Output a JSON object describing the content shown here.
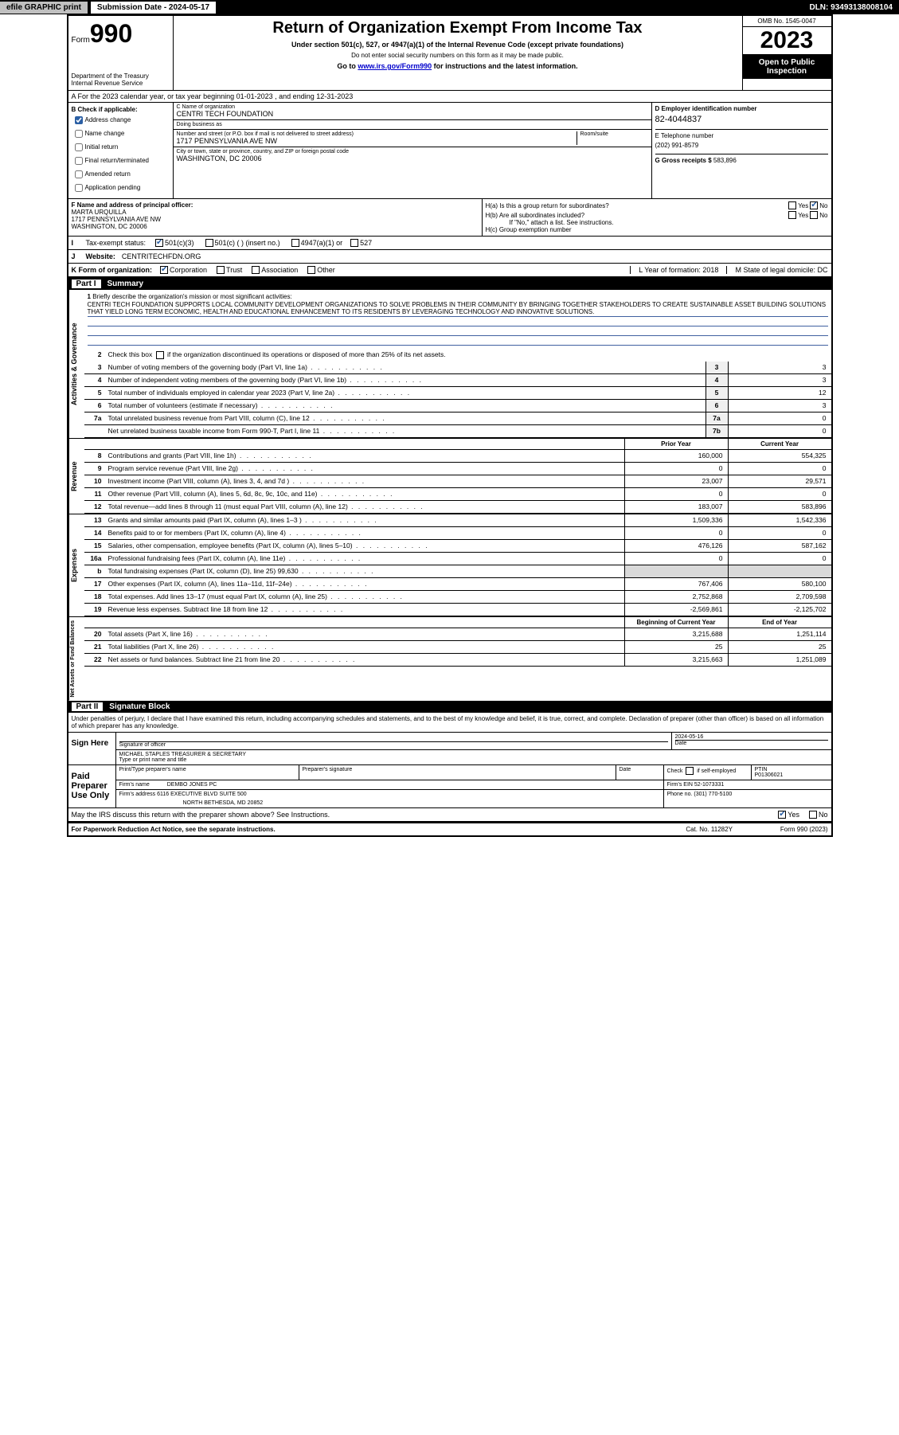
{
  "topbar": {
    "efile": "efile GRAPHIC print",
    "submission": "Submission Date - 2024-05-17",
    "dln": "DLN: 93493138008104"
  },
  "header": {
    "form_prefix": "Form",
    "form_num": "990",
    "dept": "Department of the Treasury",
    "irs": "Internal Revenue Service",
    "title": "Return of Organization Exempt From Income Tax",
    "sub1": "Under section 501(c), 527, or 4947(a)(1) of the Internal Revenue Code (except private foundations)",
    "sub2": "Do not enter social security numbers on this form as it may be made public.",
    "sub3_a": "Go to ",
    "sub3_link": "www.irs.gov/Form990",
    "sub3_b": " for instructions and the latest information.",
    "omb": "OMB No. 1545-0047",
    "year": "2023",
    "open": "Open to Public Inspection"
  },
  "row_a": "A  For the 2023 calendar year, or tax year beginning 01-01-2023   , and ending 12-31-2023",
  "section_b": {
    "b_label": "B Check if applicable:",
    "checks": [
      {
        "label": "Address change",
        "checked": true
      },
      {
        "label": "Name change",
        "checked": false
      },
      {
        "label": "Initial return",
        "checked": false
      },
      {
        "label": "Final return/terminated",
        "checked": false
      },
      {
        "label": "Amended return",
        "checked": false
      },
      {
        "label": "Application pending",
        "checked": false
      }
    ],
    "c_name_lbl": "C Name of organization",
    "c_name": "CENTRI TECH FOUNDATION",
    "dba_lbl": "Doing business as",
    "dba": "",
    "addr_lbl": "Number and street (or P.O. box if mail is not delivered to street address)",
    "room_lbl": "Room/suite",
    "addr": "1717 PENNSYLVANIA AVE NW",
    "city_lbl": "City or town, state or province, country, and ZIP or foreign postal code",
    "city": "WASHINGTON, DC  20006",
    "d_lbl": "D Employer identification number",
    "d_val": "82-4044837",
    "e_lbl": "E Telephone number",
    "e_val": "(202) 991-8579",
    "g_lbl": "G Gross receipts $",
    "g_val": "583,896"
  },
  "section_f": {
    "f_lbl": "F Name and address of principal officer:",
    "f_name": "MARTA URQUILLA",
    "f_addr1": "1717 PENNSYLVANIA AVE NW",
    "f_addr2": "WASHINGTON, DC  20006",
    "ha": "H(a)  Is this a group return for subordinates?",
    "hb": "H(b)  Are all subordinates included?",
    "hb_note": "If \"No,\" attach a list. See instructions.",
    "hc": "H(c)  Group exemption number ",
    "yes": "Yes",
    "no": "No"
  },
  "line_i": {
    "label": "Tax-exempt status:",
    "opts": [
      "501(c)(3)",
      "501(c) (  ) (insert no.)",
      "4947(a)(1) or",
      "527"
    ]
  },
  "line_j": {
    "label": "Website: ",
    "val": "CENTRITECHFDN.ORG"
  },
  "line_k": {
    "label": "K Form of organization:",
    "opts": [
      "Corporation",
      "Trust",
      "Association",
      "Other"
    ],
    "l": "L Year of formation: 2018",
    "m": "M State of legal domicile: DC"
  },
  "part1": {
    "num": "Part I",
    "title": "Summary",
    "side_ag": "Activities & Governance",
    "side_rev": "Revenue",
    "side_exp": "Expenses",
    "side_net": "Net Assets or Fund Balances",
    "l1": "Briefly describe the organization's mission or most significant activities:",
    "mission": "CENTRI TECH FOUNDATION SUPPORTS LOCAL COMMUNITY DEVELOPMENT ORGANIZATIONS TO SOLVE PROBLEMS IN THEIR COMMUNITY BY BRINGING TOGETHER STAKEHOLDERS TO CREATE SUSTAINABLE ASSET BUILDING SOLUTIONS THAT YIELD LONG TERM ECONOMIC, HEALTH AND EDUCATIONAL ENHANCEMENT TO ITS RESIDENTS BY LEVERAGING TECHNOLOGY AND INNOVATIVE SOLUTIONS.",
    "l2": "Check this box       if the organization discontinued its operations or disposed of more than 25% of its net assets.",
    "lines_ag": [
      {
        "n": "3",
        "t": "Number of voting members of the governing body (Part VI, line 1a)",
        "box": "3",
        "v": "3"
      },
      {
        "n": "4",
        "t": "Number of independent voting members of the governing body (Part VI, line 1b)",
        "box": "4",
        "v": "3"
      },
      {
        "n": "5",
        "t": "Total number of individuals employed in calendar year 2023 (Part V, line 2a)",
        "box": "5",
        "v": "12"
      },
      {
        "n": "6",
        "t": "Total number of volunteers (estimate if necessary)",
        "box": "6",
        "v": "3"
      },
      {
        "n": "7a",
        "t": "Total unrelated business revenue from Part VIII, column (C), line 12",
        "box": "7a",
        "v": "0"
      },
      {
        "n": "",
        "t": "Net unrelated business taxable income from Form 990-T, Part I, line 11",
        "box": "7b",
        "v": "0"
      }
    ],
    "col_prior": "Prior Year",
    "col_curr": "Current Year",
    "col_beg": "Beginning of Current Year",
    "col_end": "End of Year",
    "lines_rev": [
      {
        "n": "8",
        "t": "Contributions and grants (Part VIII, line 1h)",
        "p": "160,000",
        "c": "554,325"
      },
      {
        "n": "9",
        "t": "Program service revenue (Part VIII, line 2g)",
        "p": "0",
        "c": "0"
      },
      {
        "n": "10",
        "t": "Investment income (Part VIII, column (A), lines 3, 4, and 7d )",
        "p": "23,007",
        "c": "29,571"
      },
      {
        "n": "11",
        "t": "Other revenue (Part VIII, column (A), lines 5, 6d, 8c, 9c, 10c, and 11e)",
        "p": "0",
        "c": "0"
      },
      {
        "n": "12",
        "t": "Total revenue—add lines 8 through 11 (must equal Part VIII, column (A), line 12)",
        "p": "183,007",
        "c": "583,896"
      }
    ],
    "lines_exp": [
      {
        "n": "13",
        "t": "Grants and similar amounts paid (Part IX, column (A), lines 1–3 )",
        "p": "1,509,336",
        "c": "1,542,336"
      },
      {
        "n": "14",
        "t": "Benefits paid to or for members (Part IX, column (A), line 4)",
        "p": "0",
        "c": "0"
      },
      {
        "n": "15",
        "t": "Salaries, other compensation, employee benefits (Part IX, column (A), lines 5–10)",
        "p": "476,126",
        "c": "587,162"
      },
      {
        "n": "16a",
        "t": "Professional fundraising fees (Part IX, column (A), line 11e)",
        "p": "0",
        "c": "0"
      },
      {
        "n": "b",
        "t": "Total fundraising expenses (Part IX, column (D), line 25) 99,630",
        "p": "",
        "c": "",
        "shade": true
      },
      {
        "n": "17",
        "t": "Other expenses (Part IX, column (A), lines 11a–11d, 11f–24e)",
        "p": "767,406",
        "c": "580,100"
      },
      {
        "n": "18",
        "t": "Total expenses. Add lines 13–17 (must equal Part IX, column (A), line 25)",
        "p": "2,752,868",
        "c": "2,709,598"
      },
      {
        "n": "19",
        "t": "Revenue less expenses. Subtract line 18 from line 12",
        "p": "-2,569,861",
        "c": "-2,125,702"
      }
    ],
    "lines_net": [
      {
        "n": "20",
        "t": "Total assets (Part X, line 16)",
        "p": "3,215,688",
        "c": "1,251,114"
      },
      {
        "n": "21",
        "t": "Total liabilities (Part X, line 26)",
        "p": "25",
        "c": "25"
      },
      {
        "n": "22",
        "t": "Net assets or fund balances. Subtract line 21 from line 20",
        "p": "3,215,663",
        "c": "1,251,089"
      }
    ]
  },
  "part2": {
    "num": "Part II",
    "title": "Signature Block",
    "perjury": "Under penalties of perjury, I declare that I have examined this return, including accompanying schedules and statements, and to the best of my knowledge and belief, it is true, correct, and complete. Declaration of preparer (other than officer) is based on all information of which preparer has any knowledge."
  },
  "sign": {
    "here": "Sign Here",
    "sig_lbl": "Signature of officer",
    "date_lbl": "Date",
    "date": "2024-05-16",
    "officer": "MICHAEL STAPLES  TREASURER & SECRETARY",
    "type_lbl": "Type or print name and title"
  },
  "paid": {
    "title": "Paid Preparer Use Only",
    "name_lbl": "Print/Type preparer's name",
    "sig_lbl": "Preparer's signature",
    "date_lbl": "Date",
    "check_lbl": "Check       if self-employed",
    "ptin_lbl": "PTIN",
    "ptin": "P01306021",
    "firm_name_lbl": "Firm's name ",
    "firm_name": "DEMBO JONES PC",
    "firm_ein_lbl": "Firm's EIN ",
    "firm_ein": "52-1073331",
    "firm_addr_lbl": "Firm's address ",
    "firm_addr1": "6116 EXECUTIVE BLVD SUITE 500",
    "firm_addr2": "NORTH BETHESDA, MD  20852",
    "phone_lbl": "Phone no.",
    "phone": "(301) 770-5100"
  },
  "discuss": {
    "q": "May the IRS discuss this return with the preparer shown above? See Instructions.",
    "yes": "Yes",
    "no": "No"
  },
  "footer": {
    "pra": "For Paperwork Reduction Act Notice, see the separate instructions.",
    "cat": "Cat. No. 11282Y",
    "form": "Form 990 (2023)"
  }
}
